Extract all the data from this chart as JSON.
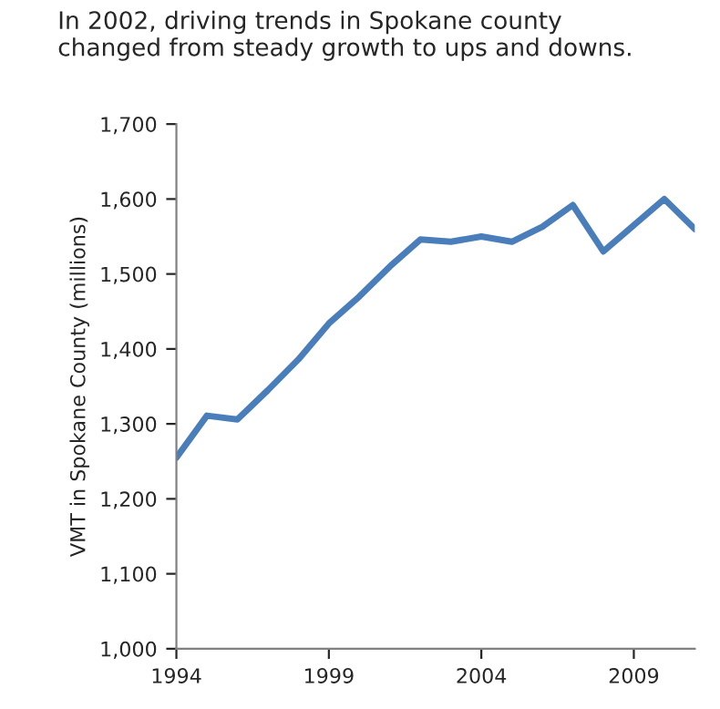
{
  "chart_data": {
    "type": "line",
    "title": "In 2002, driving trends in Spokane county\nchanged from steady growth to ups and downs.",
    "ylabel": "VMT in Spokane County (millions)",
    "x": [
      1994,
      1995,
      1996,
      1997,
      1998,
      1999,
      2000,
      2001,
      2002,
      2003,
      2004,
      2005,
      2006,
      2007,
      2008,
      2009,
      2010,
      2011
    ],
    "series": [
      {
        "color": "#4a7ebb",
        "values": [
          1255,
          1311,
          1306,
          1345,
          1386,
          1434,
          1470,
          1510,
          1546,
          1543,
          1550,
          1543,
          1563,
          1592,
          1530,
          1565,
          1600,
          1560
        ]
      }
    ],
    "xlim": [
      1994,
      2011
    ],
    "xticks": [
      1994,
      1999,
      2004,
      2009
    ],
    "ylim": [
      1000,
      1700
    ],
    "yticks": [
      {
        "value": 1000,
        "label": "1,000"
      },
      {
        "value": 1100,
        "label": "1,100"
      },
      {
        "value": 1200,
        "label": "1,200"
      },
      {
        "value": 1300,
        "label": "1,300"
      },
      {
        "value": 1400,
        "label": "1,400"
      },
      {
        "value": 1500,
        "label": "1,500"
      },
      {
        "value": 1600,
        "label": "1,600"
      },
      {
        "value": 1700,
        "label": "1,700"
      }
    ],
    "grid": false,
    "legend": false
  }
}
